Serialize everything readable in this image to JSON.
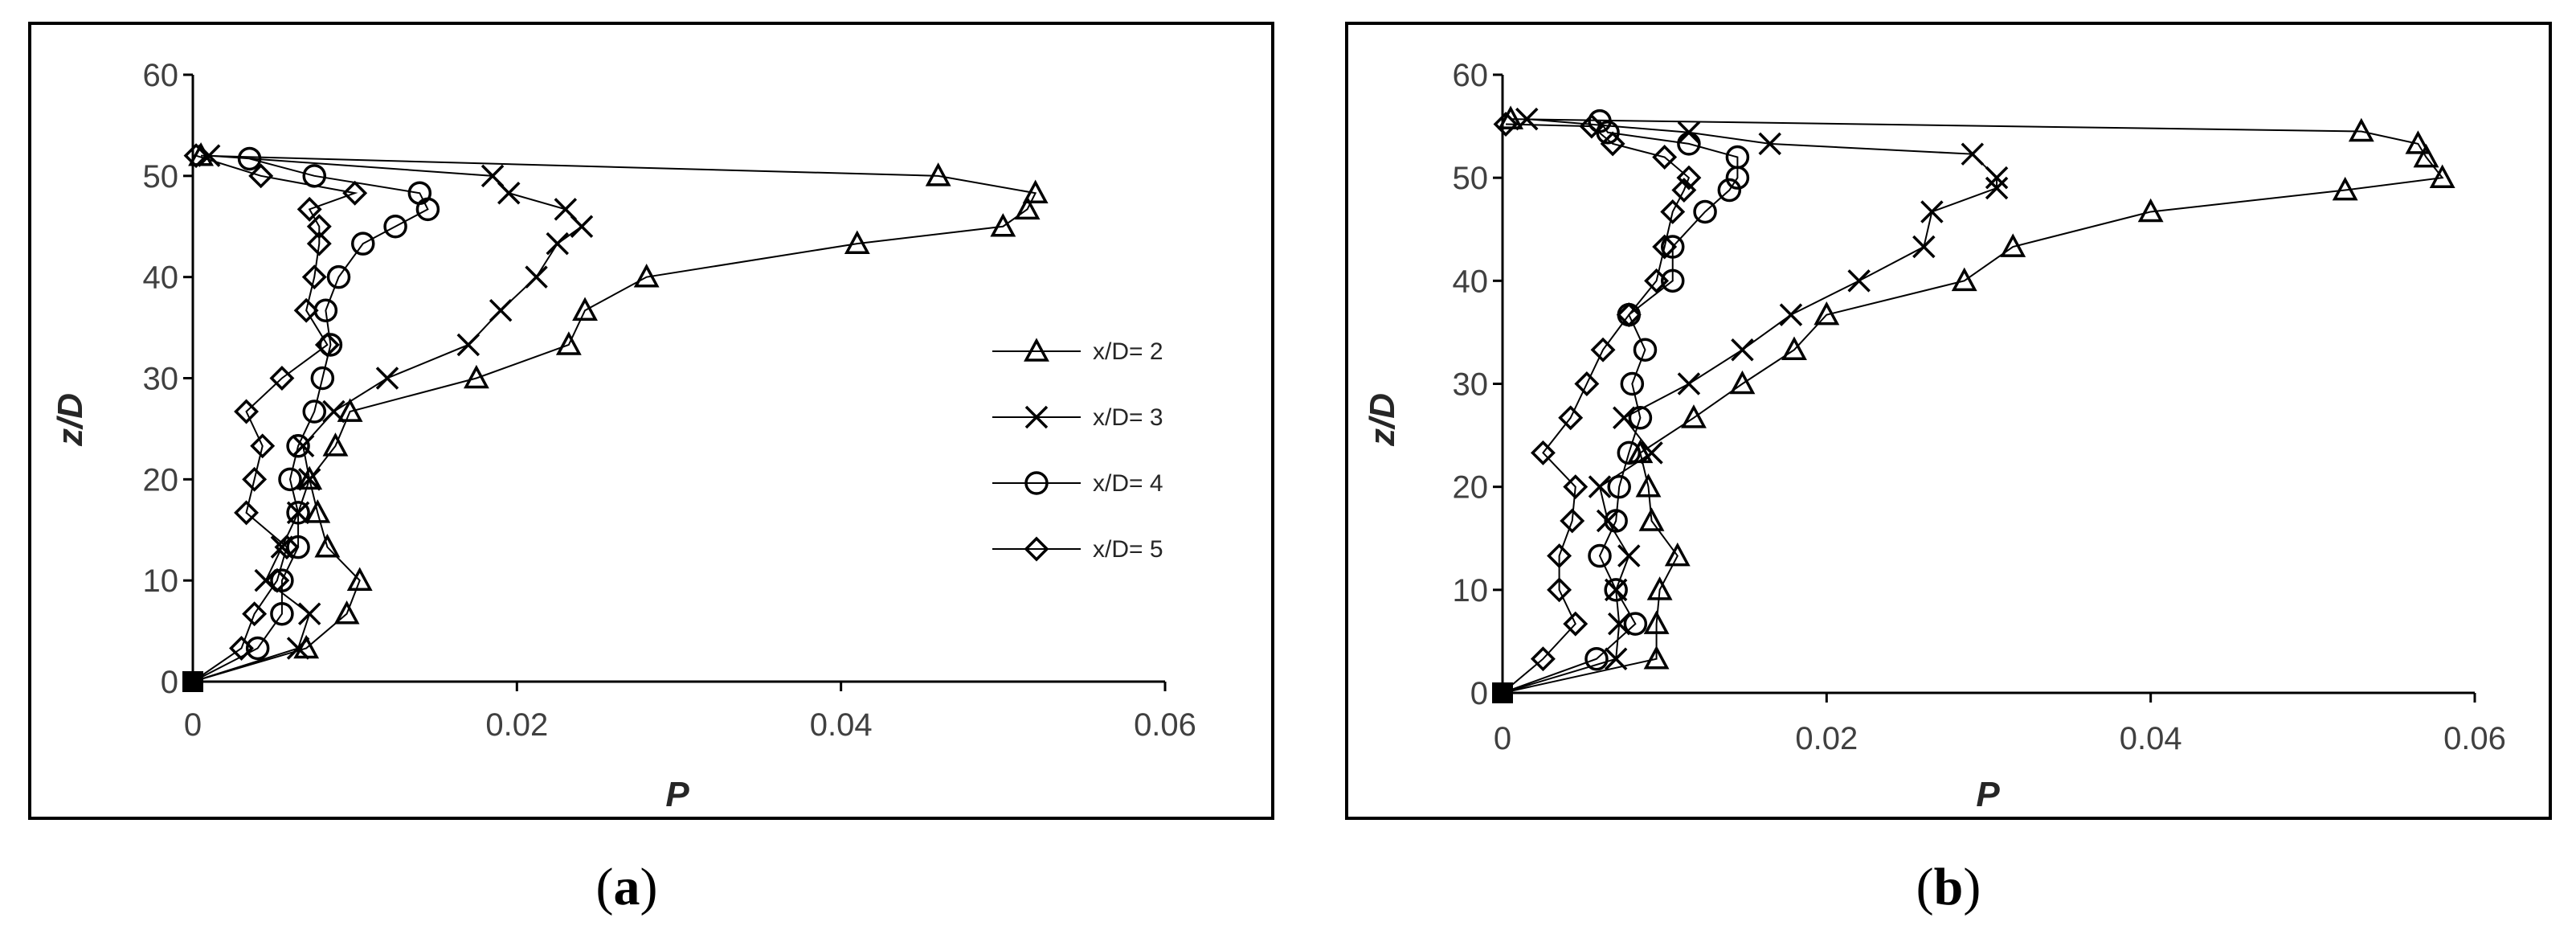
{
  "chart_data": [
    {
      "type": "line",
      "panel_label": "a",
      "xlabel": "P",
      "ylabel": "z/D",
      "xlim": [
        0,
        0.06
      ],
      "ylim": [
        0,
        60
      ],
      "xticks": [
        "0",
        "0.02",
        "0.04",
        "0.06"
      ],
      "yticks": [
        "0",
        "10",
        "20",
        "30",
        "40",
        "50",
        "60"
      ],
      "grid": false,
      "legend": "right",
      "series": [
        {
          "name": "x/D= 2",
          "marker": "triangle",
          "points": [
            [
              0,
              0
            ],
            [
              0.007,
              3.3
            ],
            [
              0.0095,
              6.7
            ],
            [
              0.0103,
              10
            ],
            [
              0.0083,
              13.3
            ],
            [
              0.0077,
              16.7
            ],
            [
              0.0072,
              20
            ],
            [
              0.0088,
              23.3
            ],
            [
              0.0097,
              26.7
            ],
            [
              0.0175,
              30
            ],
            [
              0.0232,
              33.3
            ],
            [
              0.0242,
              36.7
            ],
            [
              0.028,
              40
            ],
            [
              0.041,
              43.3
            ],
            [
              0.05,
              45
            ],
            [
              0.0515,
              46.7
            ],
            [
              0.052,
              48.3
            ],
            [
              0.046,
              50
            ],
            [
              0.0005,
              52
            ]
          ]
        },
        {
          "name": "x/D= 3",
          "marker": "x",
          "points": [
            [
              0,
              0
            ],
            [
              0.0065,
              3.3
            ],
            [
              0.0072,
              6.7
            ],
            [
              0.0045,
              10
            ],
            [
              0.0055,
              13.3
            ],
            [
              0.0065,
              16.7
            ],
            [
              0.0072,
              20
            ],
            [
              0.0068,
              23.3
            ],
            [
              0.0087,
              26.7
            ],
            [
              0.012,
              30
            ],
            [
              0.017,
              33.3
            ],
            [
              0.019,
              36.7
            ],
            [
              0.0212,
              40
            ],
            [
              0.0225,
              43.3
            ],
            [
              0.024,
              45
            ],
            [
              0.023,
              46.7
            ],
            [
              0.0195,
              48.3
            ],
            [
              0.0185,
              50
            ],
            [
              0.001,
              52
            ]
          ]
        },
        {
          "name": "x/D= 4",
          "marker": "circle",
          "points": [
            [
              0,
              0
            ],
            [
              0.004,
              3.3
            ],
            [
              0.0055,
              6.7
            ],
            [
              0.0055,
              10
            ],
            [
              0.0065,
              13.3
            ],
            [
              0.0065,
              16.7
            ],
            [
              0.006,
              20
            ],
            [
              0.0065,
              23.3
            ],
            [
              0.0075,
              26.7
            ],
            [
              0.008,
              30
            ],
            [
              0.0085,
              33.3
            ],
            [
              0.0082,
              36.7
            ],
            [
              0.009,
              40
            ],
            [
              0.0105,
              43.3
            ],
            [
              0.0125,
              45
            ],
            [
              0.0145,
              46.7
            ],
            [
              0.014,
              48.3
            ],
            [
              0.0075,
              50
            ],
            [
              0.0035,
              51.7
            ]
          ]
        },
        {
          "name": "x/D= 5",
          "marker": "diamond",
          "points": [
            [
              0,
              0
            ],
            [
              0.003,
              3.3
            ],
            [
              0.0038,
              6.7
            ],
            [
              0.0052,
              10
            ],
            [
              0.0058,
              13.3
            ],
            [
              0.0033,
              16.7
            ],
            [
              0.0038,
              20
            ],
            [
              0.0043,
              23.3
            ],
            [
              0.0033,
              26.7
            ],
            [
              0.0055,
              30
            ],
            [
              0.0083,
              33.3
            ],
            [
              0.007,
              36.7
            ],
            [
              0.0075,
              40
            ],
            [
              0.0078,
              43.3
            ],
            [
              0.0078,
              45
            ],
            [
              0.0072,
              46.7
            ],
            [
              0.01,
              48.3
            ],
            [
              0.0042,
              50
            ],
            [
              0.0002,
              52
            ]
          ]
        }
      ]
    },
    {
      "type": "line",
      "panel_label": "b",
      "xlabel": "P",
      "ylabel": "z/D",
      "xlim": [
        0,
        0.06
      ],
      "ylim": [
        0,
        60
      ],
      "xticks": [
        "0",
        "0.02",
        "0.04",
        "0.06"
      ],
      "yticks": [
        "0",
        "10",
        "20",
        "30",
        "40",
        "50",
        "60"
      ],
      "grid": false,
      "legend": "none",
      "series": [
        {
          "name": "x/D= 2",
          "marker": "triangle",
          "points": [
            [
              0,
              0
            ],
            [
              0.0095,
              3.3
            ],
            [
              0.0095,
              6.7
            ],
            [
              0.0097,
              10
            ],
            [
              0.0108,
              13.3
            ],
            [
              0.0092,
              16.7
            ],
            [
              0.009,
              20
            ],
            [
              0.0085,
              23.3
            ],
            [
              0.0118,
              26.7
            ],
            [
              0.0148,
              30
            ],
            [
              0.018,
              33.3
            ],
            [
              0.02,
              36.7
            ],
            [
              0.0285,
              40
            ],
            [
              0.0315,
              43.3
            ],
            [
              0.04,
              46.7
            ],
            [
              0.052,
              48.8
            ],
            [
              0.058,
              50
            ],
            [
              0.057,
              52
            ],
            [
              0.0565,
              53.3
            ],
            [
              0.053,
              54.5
            ],
            [
              0.0005,
              55.7
            ]
          ]
        },
        {
          "name": "x/D= 3",
          "marker": "x",
          "points": [
            [
              0,
              0
            ],
            [
              0.007,
              3.3
            ],
            [
              0.0072,
              6.7
            ],
            [
              0.007,
              10
            ],
            [
              0.0078,
              13.3
            ],
            [
              0.0065,
              16.7
            ],
            [
              0.006,
              20
            ],
            [
              0.0092,
              23.3
            ],
            [
              0.0075,
              26.7
            ],
            [
              0.0115,
              30
            ],
            [
              0.0148,
              33.3
            ],
            [
              0.0178,
              36.7
            ],
            [
              0.022,
              40
            ],
            [
              0.026,
              43.3
            ],
            [
              0.0265,
              46.7
            ],
            [
              0.0305,
              49
            ],
            [
              0.0305,
              50
            ],
            [
              0.029,
              52.3
            ],
            [
              0.0165,
              53.3
            ],
            [
              0.0115,
              54.4
            ],
            [
              0.0015,
              55.7
            ]
          ]
        },
        {
          "name": "x/D= 4",
          "marker": "circle",
          "points": [
            [
              0,
              0
            ],
            [
              0.0058,
              3.3
            ],
            [
              0.0082,
              6.7
            ],
            [
              0.007,
              10
            ],
            [
              0.006,
              13.3
            ],
            [
              0.007,
              16.7
            ],
            [
              0.0072,
              20
            ],
            [
              0.0078,
              23.3
            ],
            [
              0.0085,
              26.7
            ],
            [
              0.008,
              30
            ],
            [
              0.0088,
              33.3
            ],
            [
              0.0078,
              36.7
            ],
            [
              0.0105,
              40
            ],
            [
              0.0105,
              43.3
            ],
            [
              0.0125,
              46.7
            ],
            [
              0.014,
              48.8
            ],
            [
              0.0145,
              50
            ],
            [
              0.0145,
              52
            ],
            [
              0.0115,
              53.3
            ],
            [
              0.0065,
              54.4
            ],
            [
              0.006,
              55.5
            ]
          ]
        },
        {
          "name": "x/D= 5",
          "marker": "diamond",
          "points": [
            [
              0,
              0
            ],
            [
              0.0025,
              3.3
            ],
            [
              0.0045,
              6.7
            ],
            [
              0.0035,
              10
            ],
            [
              0.0035,
              13.3
            ],
            [
              0.0043,
              16.7
            ],
            [
              0.0045,
              20
            ],
            [
              0.0025,
              23.3
            ],
            [
              0.0042,
              26.7
            ],
            [
              0.0052,
              30
            ],
            [
              0.0062,
              33.3
            ],
            [
              0.0078,
              36.7
            ],
            [
              0.0095,
              40
            ],
            [
              0.01,
              43.3
            ],
            [
              0.0105,
              46.7
            ],
            [
              0.0112,
              48.8
            ],
            [
              0.0115,
              50
            ],
            [
              0.01,
              52
            ],
            [
              0.0068,
              53.3
            ],
            [
              0.0055,
              55
            ],
            [
              0.0002,
              55.2
            ]
          ]
        }
      ]
    }
  ]
}
